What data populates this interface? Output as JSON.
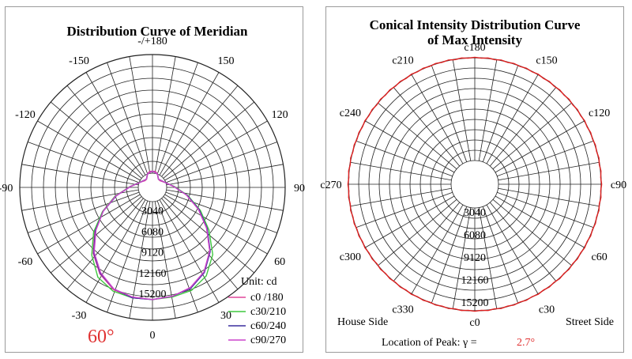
{
  "chart_data": [
    {
      "type": "polar",
      "title": "Distribution Curve of  Meridian",
      "angle_labels": [
        {
          "deg": 180,
          "text": "-/+180"
        },
        {
          "deg": -150,
          "text": "-150"
        },
        {
          "deg": 150,
          "text": "150"
        },
        {
          "deg": -120,
          "text": "-120"
        },
        {
          "deg": 120,
          "text": "120"
        },
        {
          "deg": -90,
          "text": "-90"
        },
        {
          "deg": 90,
          "text": "90"
        },
        {
          "deg": -60,
          "text": "-60"
        },
        {
          "deg": 60,
          "text": "60"
        },
        {
          "deg": -30,
          "text": "-30"
        },
        {
          "deg": 30,
          "text": "30"
        },
        {
          "deg": 0,
          "text": "0"
        }
      ],
      "radial_tick_labels": [
        "3040",
        "6080",
        "9120",
        "12160",
        "15200"
      ],
      "radial_ticks": [
        3040,
        6080,
        9120,
        12160,
        15200
      ],
      "r_max": 15200,
      "unit_label": "Unit: cd",
      "beam_angle_label": "60°",
      "legend": [
        "c0 /180",
        "c30/210",
        "c60/240",
        "c90/270"
      ],
      "series": [
        {
          "name": "c0 /180",
          "color": "#e0469a",
          "points": [
            [
              -180,
              1500
            ],
            [
              -165,
              1500
            ],
            [
              -150,
              1300
            ],
            [
              -135,
              1000
            ],
            [
              -120,
              900
            ],
            [
              -105,
              1000
            ],
            [
              -90,
              1800
            ],
            [
              -80,
              3000
            ],
            [
              -70,
              5200
            ],
            [
              -60,
              7500
            ],
            [
              -50,
              9800
            ],
            [
              -40,
              12000
            ],
            [
              -30,
              13700
            ],
            [
              -20,
              14800
            ],
            [
              -10,
              15200
            ],
            [
              0,
              15200
            ],
            [
              10,
              15000
            ],
            [
              20,
              14500
            ],
            [
              30,
              13400
            ],
            [
              40,
              11600
            ],
            [
              50,
              9200
            ],
            [
              60,
              6900
            ],
            [
              70,
              4700
            ],
            [
              80,
              2800
            ],
            [
              90,
              1700
            ],
            [
              105,
              1000
            ],
            [
              120,
              900
            ],
            [
              135,
              1000
            ],
            [
              150,
              1300
            ],
            [
              165,
              1500
            ],
            [
              180,
              1500
            ]
          ]
        },
        {
          "name": "c30/210",
          "color": "#3fc83f",
          "points": [
            [
              -180,
              1500
            ],
            [
              -150,
              1300
            ],
            [
              -120,
              900
            ],
            [
              -90,
              1800
            ],
            [
              -80,
              3000
            ],
            [
              -70,
              5200
            ],
            [
              -60,
              7500
            ],
            [
              -50,
              10000
            ],
            [
              -40,
              12300
            ],
            [
              -30,
              14200
            ],
            [
              -20,
              15000
            ],
            [
              -10,
              15200
            ],
            [
              0,
              15200
            ],
            [
              10,
              15100
            ],
            [
              20,
              14900
            ],
            [
              30,
              14000
            ],
            [
              40,
              12200
            ],
            [
              50,
              9600
            ],
            [
              60,
              7200
            ],
            [
              70,
              4900
            ],
            [
              80,
              2900
            ],
            [
              90,
              1700
            ],
            [
              120,
              900
            ],
            [
              150,
              1300
            ],
            [
              180,
              1500
            ]
          ]
        },
        {
          "name": "c60/240",
          "color": "#3a2f9e",
          "points": [
            [
              -180,
              1500
            ],
            [
              -150,
              1300
            ],
            [
              -120,
              900
            ],
            [
              -90,
              1700
            ],
            [
              -80,
              2900
            ],
            [
              -70,
              5000
            ],
            [
              -60,
              7400
            ],
            [
              -50,
              9700
            ],
            [
              -40,
              11900
            ],
            [
              -30,
              13600
            ],
            [
              -20,
              14700
            ],
            [
              -10,
              15200
            ],
            [
              0,
              15200
            ],
            [
              10,
              15000
            ],
            [
              20,
              14600
            ],
            [
              30,
              13500
            ],
            [
              40,
              11700
            ],
            [
              50,
              9300
            ],
            [
              60,
              7000
            ],
            [
              70,
              4800
            ],
            [
              80,
              2800
            ],
            [
              90,
              1700
            ],
            [
              120,
              900
            ],
            [
              150,
              1300
            ],
            [
              180,
              1500
            ]
          ]
        },
        {
          "name": "c90/270",
          "color": "#cc44cc",
          "points": [
            [
              -180,
              1500
            ],
            [
              -150,
              1300
            ],
            [
              -120,
              900
            ],
            [
              -90,
              1700
            ],
            [
              -80,
              2900
            ],
            [
              -70,
              5100
            ],
            [
              -60,
              7400
            ],
            [
              -50,
              9600
            ],
            [
              -40,
              11800
            ],
            [
              -30,
              13500
            ],
            [
              -20,
              14700
            ],
            [
              -10,
              15100
            ],
            [
              0,
              15200
            ],
            [
              10,
              15000
            ],
            [
              20,
              14500
            ],
            [
              30,
              13400
            ],
            [
              40,
              11600
            ],
            [
              50,
              9200
            ],
            [
              60,
              6900
            ],
            [
              70,
              4700
            ],
            [
              80,
              2800
            ],
            [
              90,
              1700
            ],
            [
              120,
              900
            ],
            [
              150,
              1300
            ],
            [
              180,
              1500
            ]
          ]
        }
      ]
    },
    {
      "type": "polar",
      "title_line1": "Conical Intensity Distribution Curve",
      "title_line2": "of  Max Intensity",
      "angle_labels": [
        {
          "deg": 180,
          "text": "c180"
        },
        {
          "deg": 150,
          "text": "c150"
        },
        {
          "deg": 120,
          "text": "c120"
        },
        {
          "deg": 90,
          "text": "c90"
        },
        {
          "deg": 60,
          "text": "c60"
        },
        {
          "deg": 30,
          "text": "c30"
        },
        {
          "deg": 0,
          "text": "c0"
        },
        {
          "deg": -30,
          "text": "c330"
        },
        {
          "deg": -60,
          "text": "c300"
        },
        {
          "deg": -90,
          "text": "c270"
        },
        {
          "deg": -120,
          "text": "c240"
        },
        {
          "deg": -150,
          "text": "c210"
        }
      ],
      "radial_tick_labels": [
        "3040",
        "6080",
        "9120",
        "12160",
        "15200"
      ],
      "radial_ticks": [
        3040,
        6080,
        9120,
        12160,
        15200
      ],
      "r_max": 15200,
      "house_side_label": "House Side",
      "street_side_label": "Street Side",
      "peak_label": "Location of  Peak:  γ  =",
      "peak_value": "2.7°",
      "series": [
        {
          "color": "#e02020",
          "constant_value": 15200
        }
      ]
    }
  ]
}
